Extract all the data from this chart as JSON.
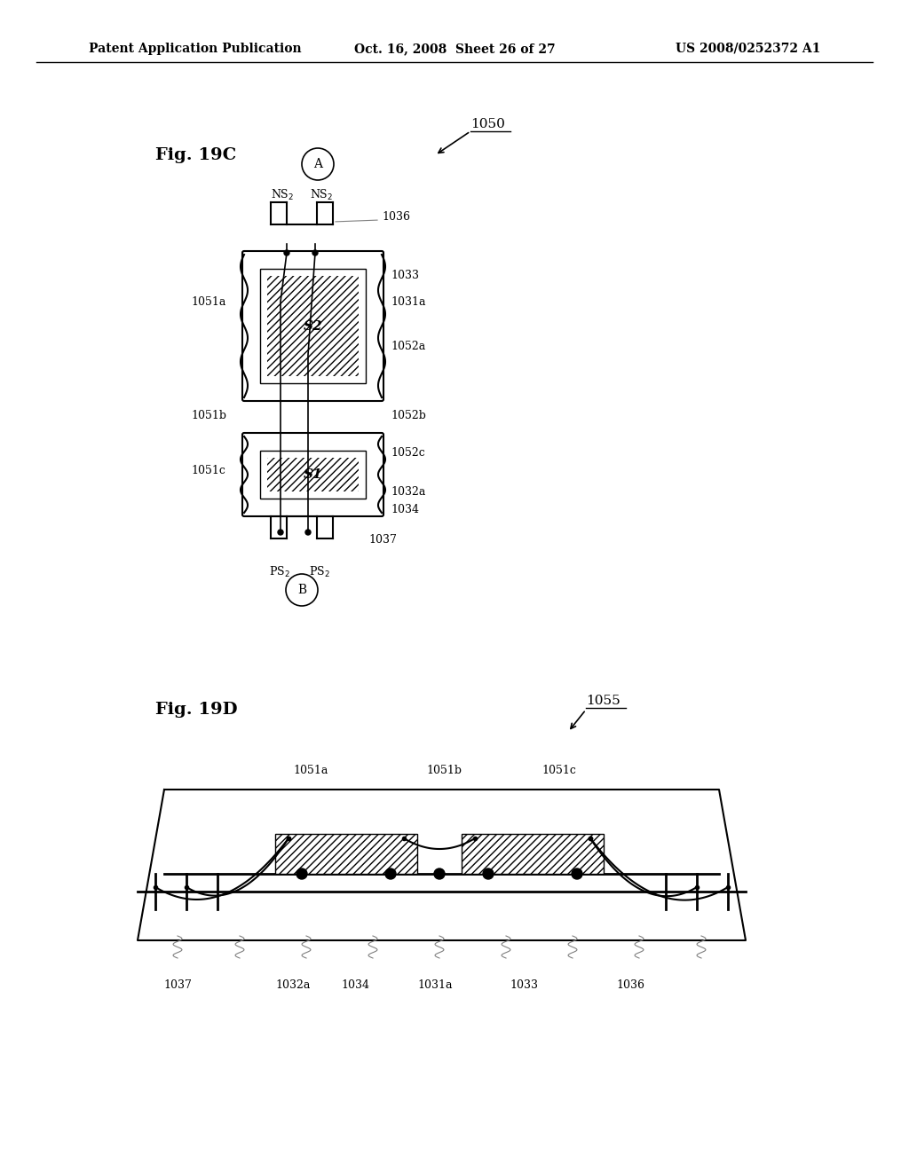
{
  "bg_color": "#ffffff",
  "header_left": "Patent Application Publication",
  "header_mid": "Oct. 16, 2008  Sheet 26 of 27",
  "header_right": "US 2008/0252372 A1",
  "fig19c_label": "Fig. 19C",
  "fig19d_label": "Fig. 19D",
  "ref_1050": "1050",
  "ref_1055": "1055"
}
